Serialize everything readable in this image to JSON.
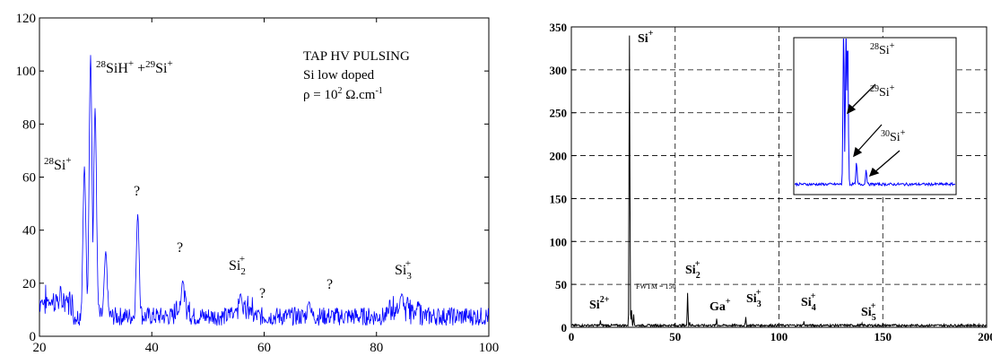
{
  "chart_data": [
    {
      "type": "line",
      "title": "",
      "xlabel": "",
      "ylabel": "",
      "xlim": [
        20,
        100
      ],
      "ylim": [
        0,
        120
      ],
      "x_ticks": [
        "20",
        "40",
        "60",
        "80",
        "100"
      ],
      "y_ticks": [
        "0",
        "20",
        "40",
        "60",
        "80",
        "100",
        "120"
      ],
      "grid": false,
      "line_color": "#0000ff",
      "peaks": [
        {
          "x": 28.0,
          "y": 64
        },
        {
          "x": 29.1,
          "y": 106
        },
        {
          "x": 29.9,
          "y": 86
        },
        {
          "x": 31.8,
          "y": 32
        },
        {
          "x": 37.5,
          "y": 46
        },
        {
          "x": 45.5,
          "y": 21
        },
        {
          "x": 55.8,
          "y": 16
        },
        {
          "x": 68.0,
          "y": 13
        },
        {
          "x": 84.5,
          "y": 16
        }
      ],
      "annotations": {
        "box_line1": "TAP HV PULSING",
        "box_line2": "Si low doped",
        "box_line3_prefix": "ρ = 10",
        "box_line3_exp": "2",
        "box_line3_unit": " Ω.cm",
        "box_line3_unit_exp": "-1",
        "peak_28_mass": "28",
        "peak_28_ion": "Si",
        "peak_28_charge": "+",
        "peak_29_mass1": "28",
        "peak_29_ion1": "SiH",
        "peak_29_charge1": "+",
        "peak_29_plus": " +",
        "peak_29_mass2": "29",
        "peak_29_ion2": "Si",
        "peak_29_charge2": "+",
        "q1": "?",
        "q2": "?",
        "q3": "?",
        "q4": "?",
        "si2_base": "Si",
        "si2_sub": "2",
        "si2_sup": "+",
        "si3_base": "Si",
        "si3_sub": "3",
        "si3_sup": "+"
      }
    },
    {
      "type": "line",
      "title": "",
      "xlabel": "",
      "ylabel": "",
      "xlim": [
        0,
        200
      ],
      "ylim": [
        0,
        350
      ],
      "x_ticks": [
        "0",
        "50",
        "100",
        "150",
        "200"
      ],
      "y_ticks": [
        "0",
        "50",
        "100",
        "150",
        "200",
        "250",
        "300",
        "350"
      ],
      "grid": true,
      "line_color": "#000000",
      "peaks": [
        {
          "x": 14,
          "y": 8
        },
        {
          "x": 28,
          "y": 340
        },
        {
          "x": 29,
          "y": 20
        },
        {
          "x": 30,
          "y": 15
        },
        {
          "x": 56,
          "y": 40
        },
        {
          "x": 57,
          "y": 6
        },
        {
          "x": 70,
          "y": 10
        },
        {
          "x": 84,
          "y": 12
        },
        {
          "x": 112,
          "y": 7
        },
        {
          "x": 140,
          "y": 5
        }
      ],
      "annotations": {
        "si_plus_base": "Si",
        "si_plus_sup": "+",
        "si2plus_base": "Si",
        "si2plus_sup": "2+",
        "fwtm": "FWTM = 150",
        "si2_base": "Si",
        "si2_sub": "2",
        "si2_sup": "+",
        "ga_base": "Ga",
        "ga_sup": "+",
        "si3_base": "Si",
        "si3_sub": "3",
        "si3_sup": "+",
        "si4_base": "Si",
        "si4_sub": "4",
        "si4_sup": "+",
        "si5_base": "Si",
        "si5_sub": "5",
        "si5_sup": "+"
      },
      "inset": {
        "line_color": "#0000ff",
        "label28_mass": "28",
        "label28_ion": "Si",
        "label28_charge": "+",
        "label29_mass": "29",
        "label29_ion": "Si",
        "label29_charge": "+",
        "label30_mass": "30",
        "label30_ion": "Si",
        "label30_charge": "+"
      }
    }
  ]
}
